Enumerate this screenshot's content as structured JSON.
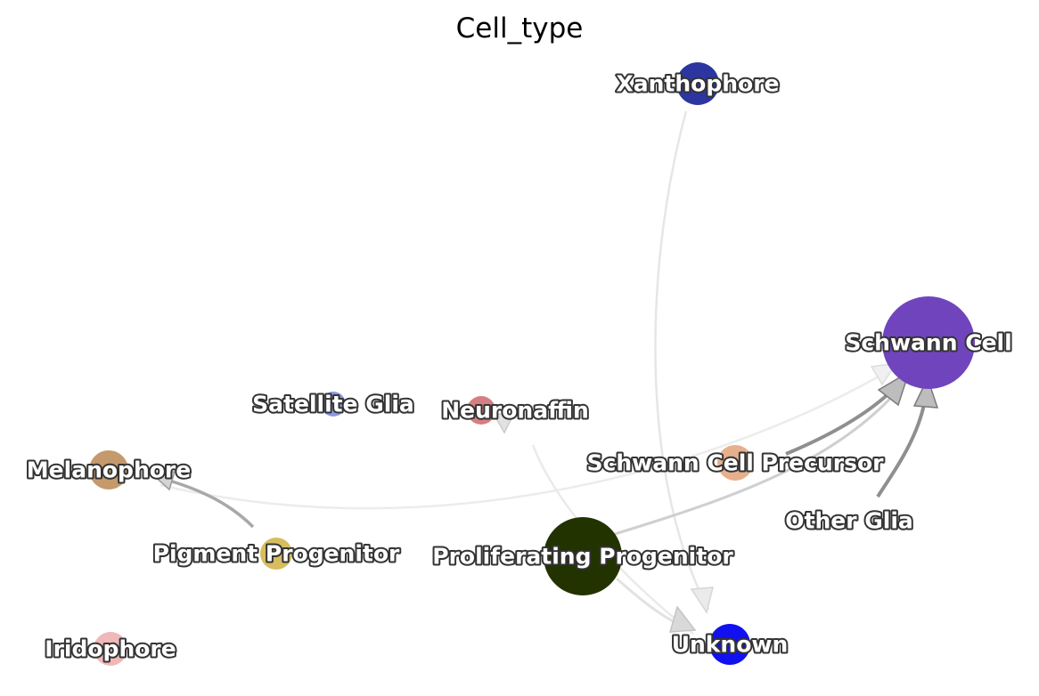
{
  "title": "Cell_type",
  "nodes": [
    {
      "id": "xanthophore",
      "label": "Xanthophore",
      "color": "#2c35a0"
    },
    {
      "id": "schwann-cell",
      "label": "Schwann Cell",
      "color": "#7044bd"
    },
    {
      "id": "satellite-glia",
      "label": "Satellite Glia",
      "color": "#8c99e0"
    },
    {
      "id": "neuronaffin",
      "label": "Neuronaffin",
      "color": "#d67f82"
    },
    {
      "id": "melanophore",
      "label": "Melanophore",
      "color": "#c49a6c"
    },
    {
      "id": "schwann-cell-precursor",
      "label": "Schwann Cell Precursor",
      "color": "#e6b08c"
    },
    {
      "id": "other-glia",
      "label": "Other Glia",
      "color": "#ffffff"
    },
    {
      "id": "pigment-progenitor",
      "label": "Pigment Progenitor",
      "color": "#d7bd5f"
    },
    {
      "id": "proliferating-progenitor",
      "label": "Proliferating Progenitor",
      "color": "#223300"
    },
    {
      "id": "unknown",
      "label": "Unknown",
      "color": "#1010f0"
    },
    {
      "id": "iridophore",
      "label": "Iridophore",
      "color": "#f0b8b8"
    }
  ],
  "edges": [
    {
      "from": "schwann-cell-precursor",
      "to": "schwann-cell",
      "strength": "strong"
    },
    {
      "from": "other-glia",
      "to": "schwann-cell",
      "strength": "strong"
    },
    {
      "from": "pigment-progenitor",
      "to": "melanophore",
      "strength": "strong"
    },
    {
      "from": "proliferating-progenitor",
      "to": "schwann-cell",
      "strength": "medium"
    },
    {
      "from": "xanthophore",
      "to": "unknown",
      "strength": "weak"
    },
    {
      "from": "proliferating-progenitor",
      "to": "unknown",
      "strength": "weak"
    },
    {
      "from": "neuronaffin",
      "to": "unknown",
      "strength": "weak"
    },
    {
      "from": "melanophore",
      "to": "schwann-cell",
      "strength": "weak"
    }
  ]
}
